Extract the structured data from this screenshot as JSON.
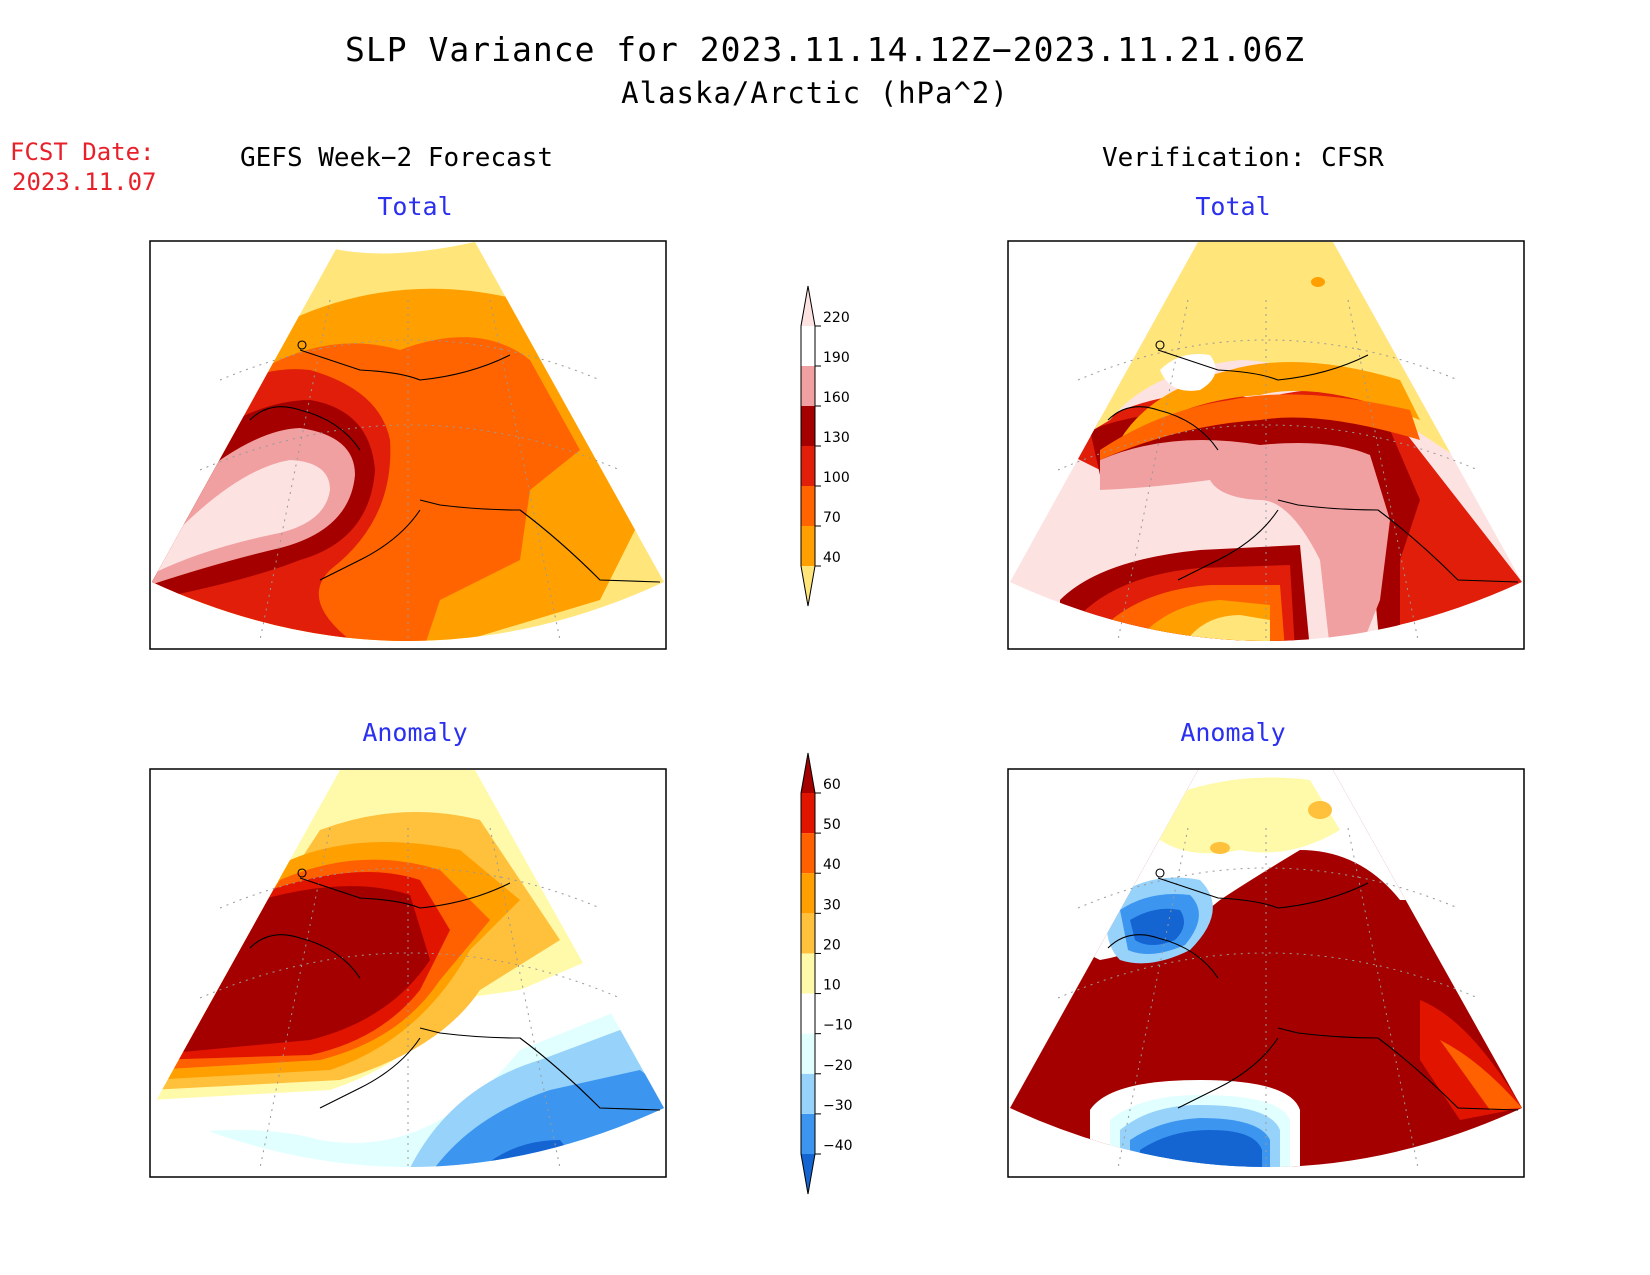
{
  "title": "SLP Variance for 2023.11.14.12Z−2023.11.21.06Z",
  "subtitle": "Alaska/Arctic (hPa^2)",
  "fcst_date_label": "FCST Date:",
  "fcst_date_value": "2023.11.07",
  "columns": {
    "left": "GEFS Week−2 Forecast",
    "right": "Verification: CFSR"
  },
  "panels": {
    "top_left": "Total",
    "top_right": "Total",
    "bottom_left": "Anomaly",
    "bottom_right": "Anomaly"
  },
  "total_colorbar": {
    "levels": [
      "40",
      "70",
      "100",
      "130",
      "160",
      "190",
      "220"
    ],
    "colors": [
      "#ffe57a",
      "#ffa000",
      "#ff6400",
      "#e01e0a",
      "#a50000",
      "#f0a0a0",
      "#fde2e2"
    ]
  },
  "anomaly_colorbar": {
    "levels": [
      "−40",
      "−30",
      "−20",
      "−10",
      "10",
      "20",
      "30",
      "40",
      "50",
      "60"
    ],
    "colors": [
      "#1464d2",
      "#3c96f0",
      "#96d2fa",
      "#e1ffff",
      "#ffffff",
      "#fffaaa",
      "#ffc03c",
      "#ffa000",
      "#ff6000",
      "#e11400",
      "#a50000"
    ]
  },
  "colors": {
    "title_text": "#000000",
    "fcst_text": "#e8202a",
    "panel_title": "#2a2ff0"
  }
}
